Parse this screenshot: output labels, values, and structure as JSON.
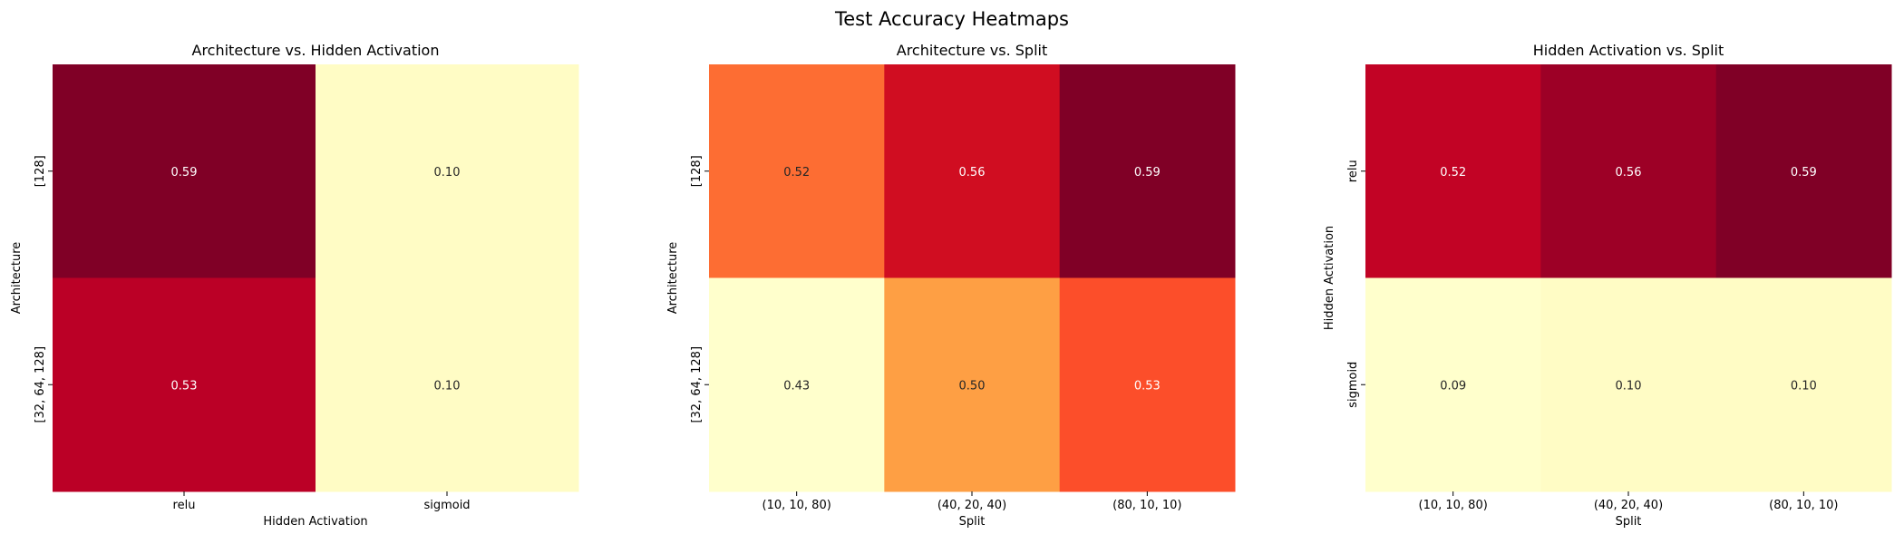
{
  "figure": {
    "title": "Test Accuracy Heatmaps"
  },
  "chart_data": [
    {
      "type": "heatmap",
      "title": "Architecture vs. Hidden Activation",
      "xlabel": "Hidden Activation",
      "ylabel": "Architecture",
      "x_categories": [
        "relu",
        "sigmoid"
      ],
      "y_categories": [
        "[128]",
        "[32, 64, 128]"
      ],
      "values": [
        [
          0.59,
          0.1
        ],
        [
          0.53,
          0.1
        ]
      ],
      "labels": [
        [
          "0.59",
          "0.10"
        ],
        [
          "0.53",
          "0.10"
        ]
      ],
      "colormap": "YlOrRd",
      "vmin": 0.09,
      "vmax": 0.59,
      "colorbar": false
    },
    {
      "type": "heatmap",
      "title": "Architecture vs. Split",
      "xlabel": "Split",
      "ylabel": "Architecture",
      "x_categories": [
        "(10, 10, 80)",
        "(40, 20, 40)",
        "(80, 10, 10)"
      ],
      "y_categories": [
        "[128]",
        "[32, 64, 128]"
      ],
      "values": [
        [
          0.52,
          0.56,
          0.59
        ],
        [
          0.43,
          0.5,
          0.53
        ]
      ],
      "labels": [
        [
          "0.52",
          "0.56",
          "0.59"
        ],
        [
          "0.43",
          "0.50",
          "0.53"
        ]
      ],
      "colormap": "YlOrRd",
      "vmin": 0.43,
      "vmax": 0.59,
      "colorbar": false
    },
    {
      "type": "heatmap",
      "title": "Hidden Activation vs. Split",
      "xlabel": "Split",
      "ylabel": "Hidden Activation",
      "x_categories": [
        "(10, 10, 80)",
        "(40, 20, 40)",
        "(80, 10, 10)"
      ],
      "y_categories": [
        "relu",
        "sigmoid"
      ],
      "values": [
        [
          0.52,
          0.56,
          0.59
        ],
        [
          0.09,
          0.1,
          0.1
        ]
      ],
      "labels": [
        [
          "0.52",
          "0.56",
          "0.59"
        ],
        [
          "0.09",
          "0.10",
          "0.10"
        ]
      ],
      "colormap": "YlOrRd",
      "vmin": 0.09,
      "vmax": 0.59,
      "colorbar": false
    }
  ]
}
